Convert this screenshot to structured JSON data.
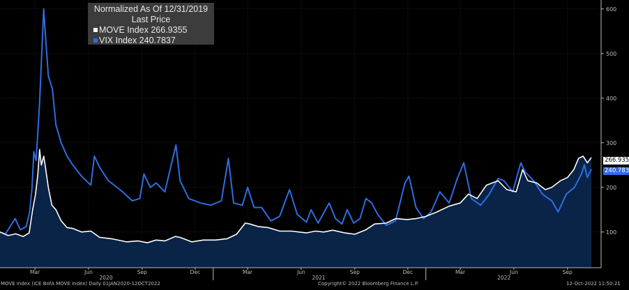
{
  "legend": {
    "title_line1": "Normalized As Of 12/31/2019",
    "title_line2": "Last Price",
    "move_label": "MOVE Index 266.9355",
    "vix_label": "VIX Index 240.7837"
  },
  "footer": {
    "left": "MOVE Index (ICE BofA MOVE Index) Daily 01JAN2020-12OCT2022",
    "center": "Copyright© 2022 Bloomberg Finance L.P.",
    "right": "12-Oct-2022 11:50:21"
  },
  "last_tags": {
    "move": "266.9355",
    "vix": "240.7837"
  },
  "colors": {
    "move": "#ffffff",
    "vix": "#2f6de1",
    "area": "#0a2448",
    "background": "#000000",
    "axis": "#bdbdbd"
  },
  "chart_data": {
    "type": "line",
    "title": "Normalized As Of 12/31/2019",
    "subtitle": "Last Price",
    "x_range": [
      "2020-01-01",
      "2022-10-12"
    ],
    "ylim": [
      20,
      620
    ],
    "y_ticks": [
      100,
      200,
      300,
      400,
      500,
      600
    ],
    "x_month_ticks": [
      {
        "label": "Mar",
        "date": "2020-03-01"
      },
      {
        "label": "Jun",
        "date": "2020-06-01"
      },
      {
        "label": "Sep",
        "date": "2020-09-01"
      },
      {
        "label": "Dec",
        "date": "2020-12-01"
      },
      {
        "label": "Mar",
        "date": "2021-03-01"
      },
      {
        "label": "Jun",
        "date": "2021-06-01"
      },
      {
        "label": "Sep",
        "date": "2021-09-01"
      },
      {
        "label": "Dec",
        "date": "2021-12-01"
      },
      {
        "label": "Mar",
        "date": "2022-03-01"
      },
      {
        "label": "Jun",
        "date": "2022-06-01"
      },
      {
        "label": "Sep",
        "date": "2022-09-01"
      }
    ],
    "x_year_labels": [
      {
        "label": "2020",
        "date": "2020-07-01"
      },
      {
        "label": "2021",
        "date": "2021-07-01"
      },
      {
        "label": "2022",
        "date": "2022-05-15"
      }
    ],
    "x_year_dividers": [
      "2021-01-01",
      "2022-01-01"
    ],
    "grid": true,
    "legend_position": "top-left",
    "series": [
      {
        "name": "MOVE Index",
        "color": "#ffffff",
        "area": true,
        "last": 266.9355,
        "points": [
          [
            "2020-01-01",
            100
          ],
          [
            "2020-01-15",
            92
          ],
          [
            "2020-01-28",
            96
          ],
          [
            "2020-02-10",
            90
          ],
          [
            "2020-02-20",
            98
          ],
          [
            "2020-02-26",
            150
          ],
          [
            "2020-03-02",
            185
          ],
          [
            "2020-03-06",
            230
          ],
          [
            "2020-03-09",
            285
          ],
          [
            "2020-03-12",
            250
          ],
          [
            "2020-03-16",
            270
          ],
          [
            "2020-03-19",
            245
          ],
          [
            "2020-03-24",
            200
          ],
          [
            "2020-03-30",
            160
          ],
          [
            "2020-04-06",
            150
          ],
          [
            "2020-04-15",
            125
          ],
          [
            "2020-04-25",
            110
          ],
          [
            "2020-05-05",
            108
          ],
          [
            "2020-05-20",
            100
          ],
          [
            "2020-06-05",
            102
          ],
          [
            "2020-06-20",
            88
          ],
          [
            "2020-07-10",
            85
          ],
          [
            "2020-08-05",
            78
          ],
          [
            "2020-08-25",
            80
          ],
          [
            "2020-09-10",
            76
          ],
          [
            "2020-09-25",
            82
          ],
          [
            "2020-10-10",
            80
          ],
          [
            "2020-10-28",
            90
          ],
          [
            "2020-11-05",
            88
          ],
          [
            "2020-11-25",
            78
          ],
          [
            "2020-12-15",
            82
          ],
          [
            "2021-01-05",
            82
          ],
          [
            "2021-01-25",
            85
          ],
          [
            "2021-02-10",
            95
          ],
          [
            "2021-02-25",
            120
          ],
          [
            "2021-03-05",
            118
          ],
          [
            "2021-03-20",
            112
          ],
          [
            "2021-04-05",
            110
          ],
          [
            "2021-04-25",
            102
          ],
          [
            "2021-05-15",
            102
          ],
          [
            "2021-06-10",
            98
          ],
          [
            "2021-06-25",
            102
          ],
          [
            "2021-07-10",
            100
          ],
          [
            "2021-07-25",
            104
          ],
          [
            "2021-08-15",
            98
          ],
          [
            "2021-09-01",
            95
          ],
          [
            "2021-09-20",
            105
          ],
          [
            "2021-10-05",
            118
          ],
          [
            "2021-10-25",
            120
          ],
          [
            "2021-11-10",
            130
          ],
          [
            "2021-11-30",
            128
          ],
          [
            "2021-12-15",
            130
          ],
          [
            "2022-01-01",
            135
          ],
          [
            "2022-01-20",
            145
          ],
          [
            "2022-02-10",
            158
          ],
          [
            "2022-03-01",
            165
          ],
          [
            "2022-03-15",
            185
          ],
          [
            "2022-03-30",
            175
          ],
          [
            "2022-04-15",
            205
          ],
          [
            "2022-05-05",
            215
          ],
          [
            "2022-05-20",
            195
          ],
          [
            "2022-06-05",
            190
          ],
          [
            "2022-06-16",
            240
          ],
          [
            "2022-06-25",
            215
          ],
          [
            "2022-07-10",
            210
          ],
          [
            "2022-07-25",
            195
          ],
          [
            "2022-08-05",
            200
          ],
          [
            "2022-08-20",
            215
          ],
          [
            "2022-09-01",
            222
          ],
          [
            "2022-09-12",
            240
          ],
          [
            "2022-09-20",
            265
          ],
          [
            "2022-09-28",
            270
          ],
          [
            "2022-10-05",
            255
          ],
          [
            "2022-10-12",
            266.9
          ]
        ]
      },
      {
        "name": "VIX Index",
        "color": "#2f6de1",
        "area": false,
        "last": 240.7837,
        "points": [
          [
            "2020-01-01",
            100
          ],
          [
            "2020-01-10",
            95
          ],
          [
            "2020-01-27",
            130
          ],
          [
            "2020-02-05",
            105
          ],
          [
            "2020-02-15",
            112
          ],
          [
            "2020-02-21",
            145
          ],
          [
            "2020-02-25",
            200
          ],
          [
            "2020-02-28",
            280
          ],
          [
            "2020-03-03",
            260
          ],
          [
            "2020-03-09",
            390
          ],
          [
            "2020-03-12",
            480
          ],
          [
            "2020-03-16",
            600
          ],
          [
            "2020-03-18",
            560
          ],
          [
            "2020-03-24",
            450
          ],
          [
            "2020-03-31",
            420
          ],
          [
            "2020-04-06",
            340
          ],
          [
            "2020-04-15",
            300
          ],
          [
            "2020-04-25",
            270
          ],
          [
            "2020-05-05",
            250
          ],
          [
            "2020-05-20",
            225
          ],
          [
            "2020-06-05",
            205
          ],
          [
            "2020-06-11",
            270
          ],
          [
            "2020-06-20",
            245
          ],
          [
            "2020-07-05",
            215
          ],
          [
            "2020-07-25",
            195
          ],
          [
            "2020-08-15",
            170
          ],
          [
            "2020-08-28",
            175
          ],
          [
            "2020-09-04",
            230
          ],
          [
            "2020-09-15",
            200
          ],
          [
            "2020-09-25",
            210
          ],
          [
            "2020-10-10",
            190
          ],
          [
            "2020-10-29",
            295
          ],
          [
            "2020-11-05",
            215
          ],
          [
            "2020-11-20",
            175
          ],
          [
            "2020-12-10",
            165
          ],
          [
            "2020-12-28",
            160
          ],
          [
            "2021-01-15",
            170
          ],
          [
            "2021-01-27",
            265
          ],
          [
            "2021-02-05",
            165
          ],
          [
            "2021-02-20",
            160
          ],
          [
            "2021-03-01",
            200
          ],
          [
            "2021-03-12",
            155
          ],
          [
            "2021-03-25",
            155
          ],
          [
            "2021-04-10",
            125
          ],
          [
            "2021-04-25",
            135
          ],
          [
            "2021-05-12",
            195
          ],
          [
            "2021-05-25",
            140
          ],
          [
            "2021-06-10",
            122
          ],
          [
            "2021-06-18",
            150
          ],
          [
            "2021-06-30",
            120
          ],
          [
            "2021-07-19",
            165
          ],
          [
            "2021-07-30",
            130
          ],
          [
            "2021-08-10",
            118
          ],
          [
            "2021-08-19",
            150
          ],
          [
            "2021-08-30",
            120
          ],
          [
            "2021-09-10",
            130
          ],
          [
            "2021-09-20",
            175
          ],
          [
            "2021-09-30",
            165
          ],
          [
            "2021-10-10",
            140
          ],
          [
            "2021-10-25",
            115
          ],
          [
            "2021-11-10",
            125
          ],
          [
            "2021-11-26",
            210
          ],
          [
            "2021-12-03",
            225
          ],
          [
            "2021-12-15",
            155
          ],
          [
            "2021-12-28",
            130
          ],
          [
            "2022-01-10",
            145
          ],
          [
            "2022-01-25",
            190
          ],
          [
            "2022-02-10",
            165
          ],
          [
            "2022-02-24",
            220
          ],
          [
            "2022-03-07",
            255
          ],
          [
            "2022-03-20",
            175
          ],
          [
            "2022-04-05",
            160
          ],
          [
            "2022-04-20",
            185
          ],
          [
            "2022-05-05",
            220
          ],
          [
            "2022-05-15",
            215
          ],
          [
            "2022-05-30",
            190
          ],
          [
            "2022-06-13",
            255
          ],
          [
            "2022-06-20",
            235
          ],
          [
            "2022-07-05",
            215
          ],
          [
            "2022-07-20",
            185
          ],
          [
            "2022-08-05",
            170
          ],
          [
            "2022-08-16",
            145
          ],
          [
            "2022-08-30",
            185
          ],
          [
            "2022-09-13",
            200
          ],
          [
            "2022-09-25",
            230
          ],
          [
            "2022-09-30",
            250
          ],
          [
            "2022-10-05",
            222
          ],
          [
            "2022-10-12",
            240.8
          ]
        ]
      }
    ]
  }
}
